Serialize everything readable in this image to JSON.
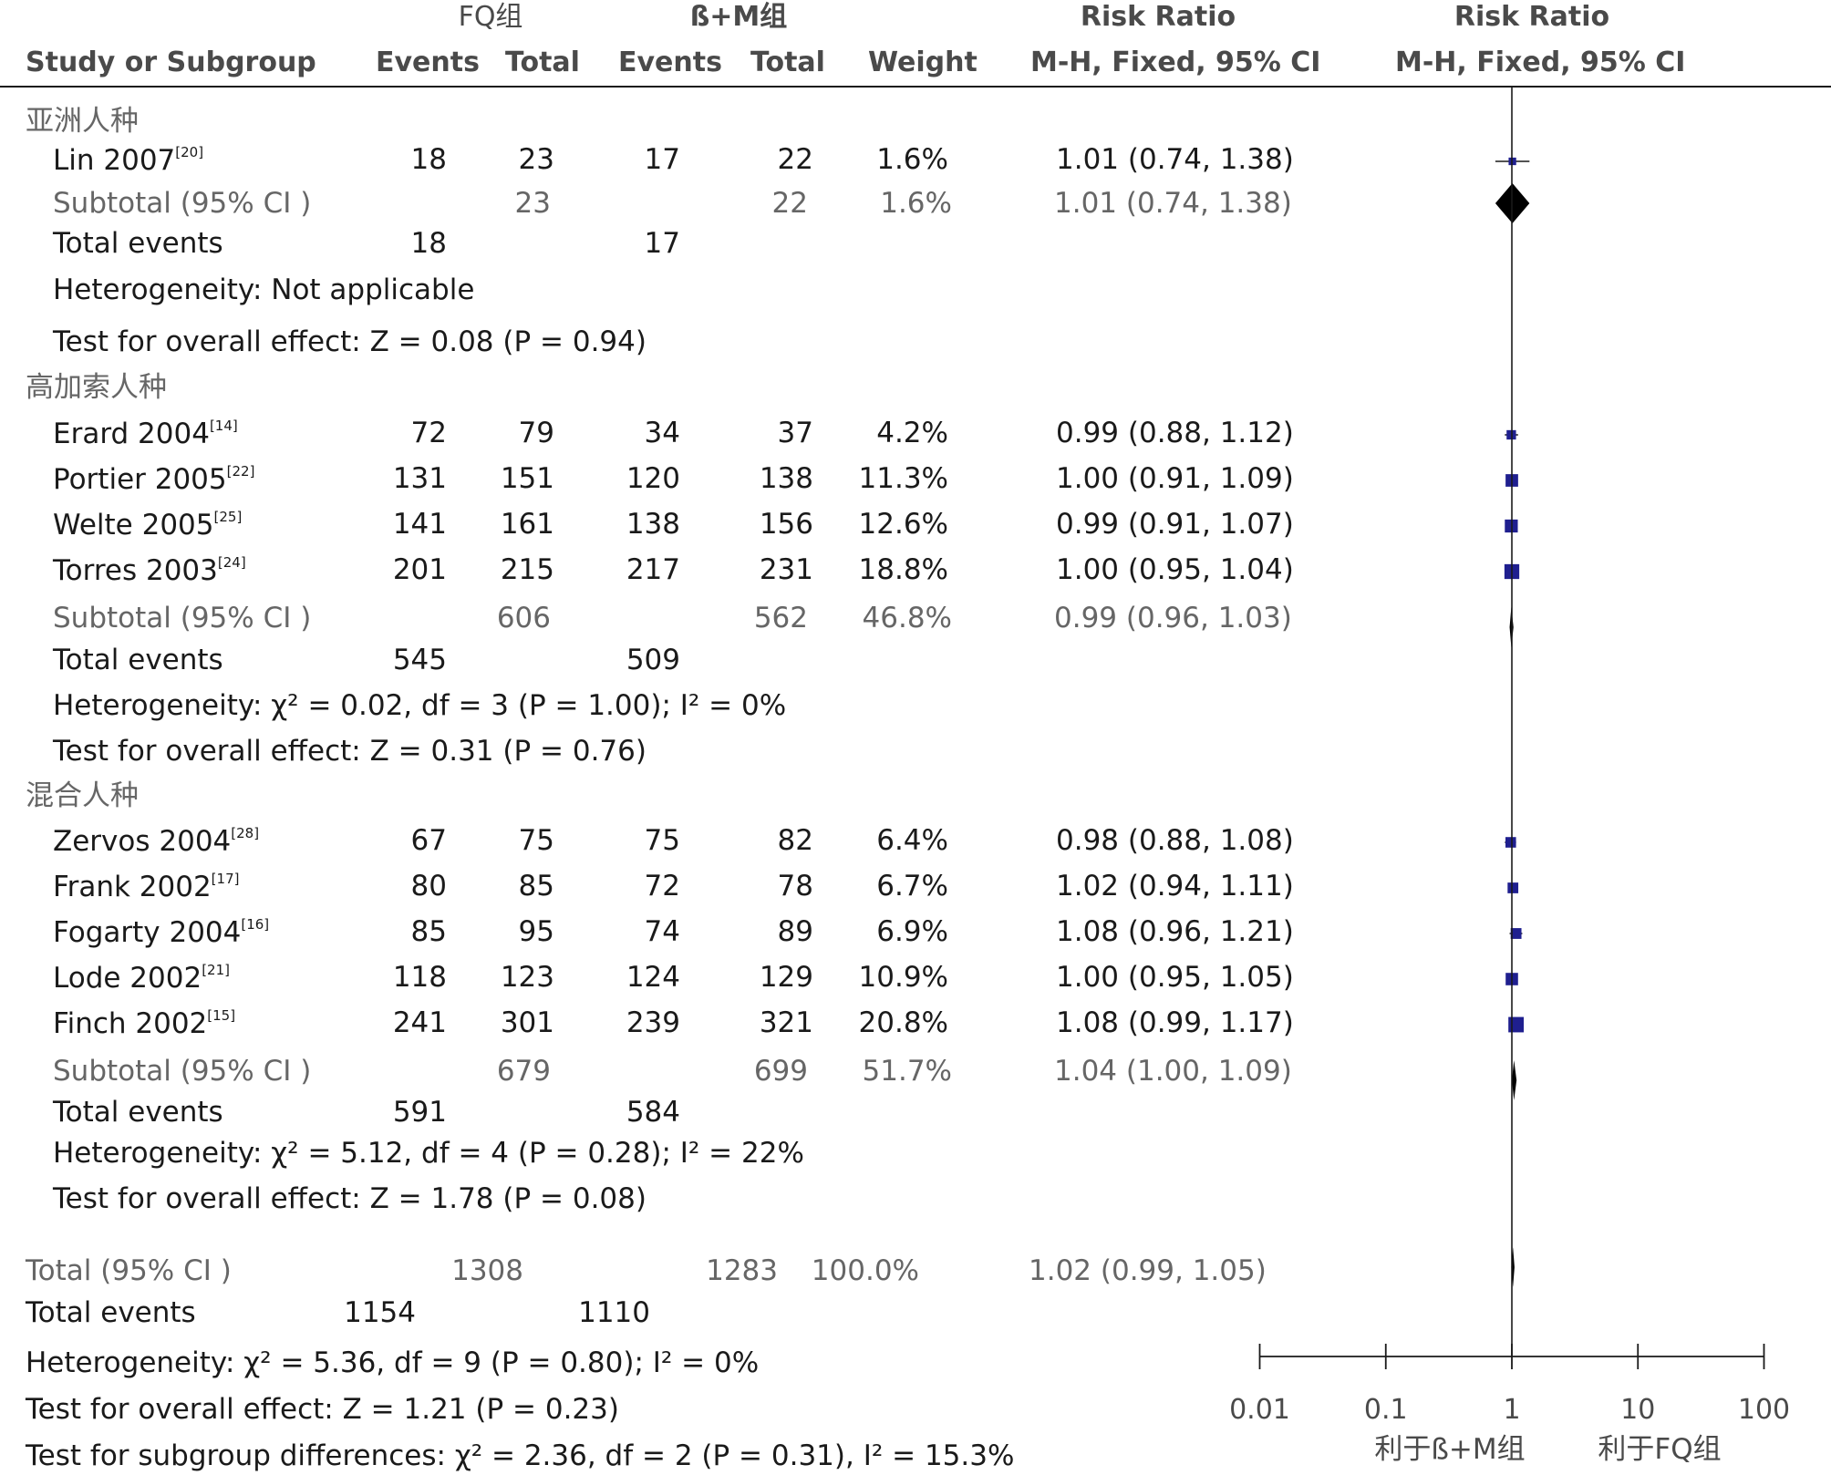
{
  "header": {
    "group1": "FQ组",
    "group2": "ß+M组",
    "rr_title": "Risk Ratio",
    "rr_method": "M-H, Fixed, 95% CI",
    "plot_title": "Risk Ratio",
    "plot_method": "M-H, Fixed, 95% CI",
    "col_study": "Study or Subgroup",
    "col_events1": "Events",
    "col_total1": "Total",
    "col_events2": "Events",
    "col_total2": "Total",
    "col_weight": "Weight"
  },
  "subgroups": [
    {
      "name": "亚洲人种",
      "studies": [
        {
          "study": "Lin 2007",
          "ref": "[20]",
          "e1": "18",
          "t1": "23",
          "e2": "17",
          "t2": "22",
          "weight": "1.6%",
          "ci": "1.01 (0.74, 1.38)"
        }
      ],
      "subtotal": {
        "label": "Subtotal (95% CI )",
        "t1": "23",
        "t2": "22",
        "weight": "1.6%",
        "ci": "1.01 (0.74, 1.38)"
      },
      "total_events": {
        "label": "Total events",
        "e1": "18",
        "e2": "17"
      },
      "heterogeneity": "Heterogeneity: Not applicable",
      "overall": "Test for overall effect: Z = 0.08 (P = 0.94)"
    },
    {
      "name": "高加索人种",
      "studies": [
        {
          "study": "Erard 2004",
          "ref": "[14]",
          "e1": "72",
          "t1": "79",
          "e2": "34",
          "t2": "37",
          "weight": "4.2%",
          "ci": "0.99 (0.88, 1.12)"
        },
        {
          "study": "Portier 2005",
          "ref": "[22]",
          "e1": "131",
          "t1": "151",
          "e2": "120",
          "t2": "138",
          "weight": "11.3%",
          "ci": "1.00 (0.91, 1.09)"
        },
        {
          "study": "Welte 2005",
          "ref": "[25]",
          "e1": "141",
          "t1": "161",
          "e2": "138",
          "t2": "156",
          "weight": "12.6%",
          "ci": "0.99 (0.91, 1.07)"
        },
        {
          "study": "Torres 2003",
          "ref": "[24]",
          "e1": "201",
          "t1": "215",
          "e2": "217",
          "t2": "231",
          "weight": "18.8%",
          "ci": "1.00 (0.95, 1.04)"
        }
      ],
      "subtotal": {
        "label": "Subtotal (95% CI )",
        "t1": "606",
        "t2": "562",
        "weight": "46.8%",
        "ci": "0.99 (0.96, 1.03)"
      },
      "total_events": {
        "label": "Total events",
        "e1": "545",
        "e2": "509"
      },
      "heterogeneity": "Heterogeneity: χ² = 0.02, df = 3 (P = 1.00); I² = 0%",
      "overall": "Test for overall effect: Z = 0.31 (P = 0.76)"
    },
    {
      "name": "混合人种",
      "studies": [
        {
          "study": "Zervos 2004",
          "ref": "[28]",
          "e1": "67",
          "t1": "75",
          "e2": "75",
          "t2": "82",
          "weight": "6.4%",
          "ci": "0.98 (0.88, 1.08)"
        },
        {
          "study": "Frank 2002",
          "ref": "[17]",
          "e1": "80",
          "t1": "85",
          "e2": "72",
          "t2": "78",
          "weight": "6.7%",
          "ci": "1.02 (0.94, 1.11)"
        },
        {
          "study": "Fogarty 2004",
          "ref": "[16]",
          "e1": "85",
          "t1": "95",
          "e2": "74",
          "t2": "89",
          "weight": "6.9%",
          "ci": "1.08 (0.96, 1.21)"
        },
        {
          "study": "Lode 2002",
          "ref": "[21]",
          "e1": "118",
          "t1": "123",
          "e2": "124",
          "t2": "129",
          "weight": "10.9%",
          "ci": "1.00 (0.95, 1.05)"
        },
        {
          "study": "Finch 2002",
          "ref": "[15]",
          "e1": "241",
          "t1": "301",
          "e2": "239",
          "t2": "321",
          "weight": "20.8%",
          "ci": "1.08 (0.99, 1.17)"
        }
      ],
      "subtotal": {
        "label": "Subtotal (95% CI )",
        "t1": "679",
        "t2": "699",
        "weight": "51.7%",
        "ci": "1.04 (1.00, 1.09)"
      },
      "total_events": {
        "label": "Total events",
        "e1": "591",
        "e2": "584"
      },
      "heterogeneity": "Heterogeneity: χ² = 5.12, df = 4 (P = 0.28); I² = 22%",
      "overall": "Test for overall effect: Z = 1.78 (P = 0.08)"
    }
  ],
  "total": {
    "label": "Total (95% CI )",
    "t1": "1308",
    "t2": "1283",
    "weight": "100.0%",
    "ci": "1.02 (0.99, 1.05)"
  },
  "total_events": {
    "label": "Total events",
    "e1": "1154",
    "e2": "1110"
  },
  "heterogeneity": "Heterogeneity: χ² = 5.36, df = 9 (P = 0.80); I² = 0%",
  "overall": "Test for overall effect: Z = 1.21 (P = 0.23)",
  "subgroup_diff": "Test for subgroup differences: χ² = 2.36, df = 2 (P = 0.31), I² = 15.3%",
  "axis": {
    "ticks": [
      "0.01",
      "0.1",
      "1",
      "10",
      "100"
    ],
    "favours_left": "利于ß+M组",
    "favours_right": "利于FQ组"
  },
  "colors": {
    "square": "#1f1f8f",
    "diamond": "#000000",
    "line": "#1a1a1a",
    "muted": "#666666"
  },
  "chart_data": {
    "type": "forest",
    "title": "Risk Ratio",
    "xlabel": "M-H, Fixed, 95% CI",
    "scale": "log",
    "xlim": [
      0.01,
      100
    ],
    "reference_line": 1,
    "studies": [
      {
        "label": "Lin 2007",
        "rr": 1.01,
        "lo": 0.74,
        "hi": 1.38,
        "weight": 1.6
      },
      {
        "label": "Erard 2004",
        "rr": 0.99,
        "lo": 0.88,
        "hi": 1.12,
        "weight": 4.2
      },
      {
        "label": "Portier 2005",
        "rr": 1.0,
        "lo": 0.91,
        "hi": 1.09,
        "weight": 11.3
      },
      {
        "label": "Welte 2005",
        "rr": 0.99,
        "lo": 0.91,
        "hi": 1.07,
        "weight": 12.6
      },
      {
        "label": "Torres 2003",
        "rr": 1.0,
        "lo": 0.95,
        "hi": 1.04,
        "weight": 18.8
      },
      {
        "label": "Zervos 2004",
        "rr": 0.98,
        "lo": 0.88,
        "hi": 1.08,
        "weight": 6.4
      },
      {
        "label": "Frank 2002",
        "rr": 1.02,
        "lo": 0.94,
        "hi": 1.11,
        "weight": 6.7
      },
      {
        "label": "Fogarty 2004",
        "rr": 1.08,
        "lo": 0.96,
        "hi": 1.21,
        "weight": 6.9
      },
      {
        "label": "Lode 2002",
        "rr": 1.0,
        "lo": 0.95,
        "hi": 1.05,
        "weight": 10.9
      },
      {
        "label": "Finch 2002",
        "rr": 1.08,
        "lo": 0.99,
        "hi": 1.17,
        "weight": 20.8
      }
    ],
    "pooled": [
      {
        "label": "亚洲人种 Subtotal",
        "rr": 1.01,
        "lo": 0.74,
        "hi": 1.38
      },
      {
        "label": "高加索人种 Subtotal",
        "rr": 0.99,
        "lo": 0.96,
        "hi": 1.03
      },
      {
        "label": "混合人种 Subtotal",
        "rr": 1.04,
        "lo": 1.0,
        "hi": 1.09
      },
      {
        "label": "Total",
        "rr": 1.02,
        "lo": 0.99,
        "hi": 1.05
      }
    ]
  }
}
